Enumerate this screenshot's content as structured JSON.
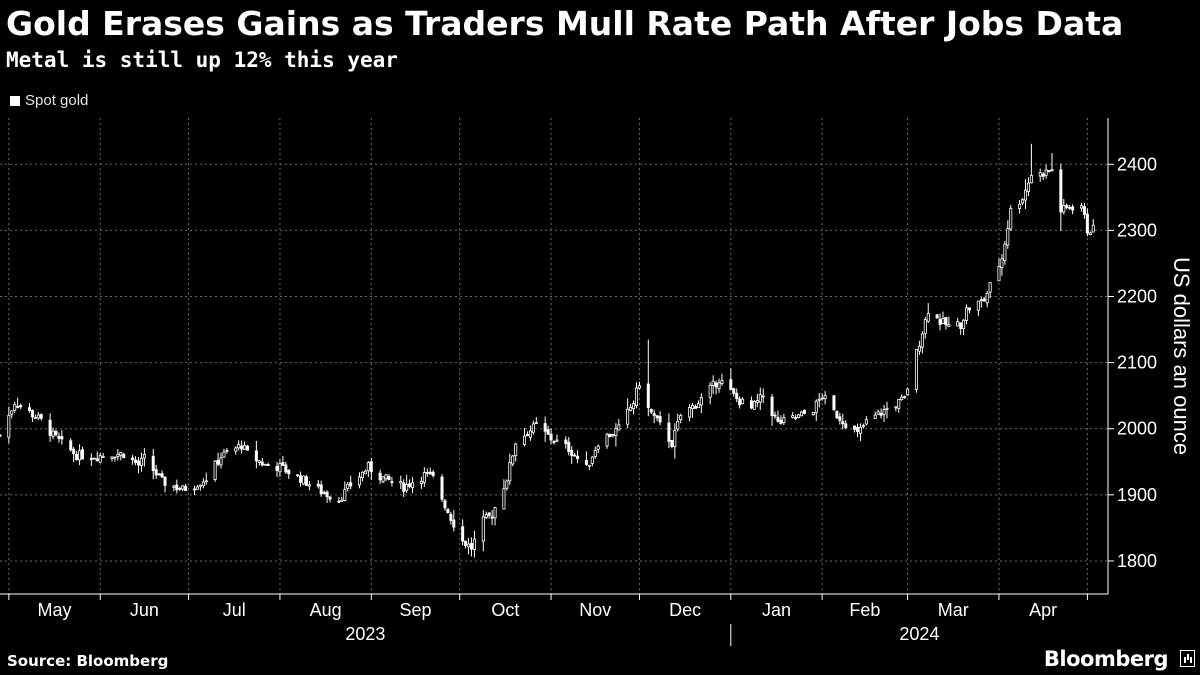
{
  "header": {
    "title": "Gold Erases Gains as Traders Mull Rate Path After Jobs Data",
    "subtitle": "Metal is still up 12% this year"
  },
  "footer": {
    "source": "Source: Bloomberg",
    "brand": "Bloomberg"
  },
  "colors": {
    "background": "#000000",
    "candle": "#ffffff",
    "grid": "#666666",
    "text": "#ffffff"
  },
  "chart_data": {
    "type": "candlestick",
    "title": "Gold Erases Gains as Traders Mull Rate Path After Jobs Data",
    "subtitle": "Metal is still up 12% this year",
    "legend": {
      "entries": [
        "Spot gold"
      ],
      "placement": "top-left"
    },
    "ylabel": "US dollars an ounce",
    "y_axis_side": "right",
    "ylim": [
      1750,
      2470
    ],
    "y_ticks": [
      1800,
      1900,
      2000,
      2100,
      2200,
      2300,
      2400
    ],
    "xlim": [
      "2023-04-28",
      "2024-05-08"
    ],
    "x_tick_boundaries": [
      "2023-05-01",
      "2023-06-01",
      "2023-07-01",
      "2023-08-01",
      "2023-09-01",
      "2023-10-01",
      "2023-11-01",
      "2023-12-01",
      "2024-01-01",
      "2024-02-01",
      "2024-03-01",
      "2024-04-01",
      "2024-05-01"
    ],
    "x_month_labels": [
      "May",
      "Jun",
      "Jul",
      "Aug",
      "Sep",
      "Oct",
      "Nov",
      "Dec",
      "Jan",
      "Feb",
      "Mar",
      "Apr"
    ],
    "x_year_labels": [
      "2023",
      "2024"
    ],
    "grid": true,
    "close_anchors": [
      [
        "2023-04-28",
        1990
      ],
      [
        "2023-05-03",
        2040
      ],
      [
        "2023-05-08",
        2025
      ],
      [
        "2023-05-12",
        2012
      ],
      [
        "2023-05-16",
        1990
      ],
      [
        "2023-05-19",
        1978
      ],
      [
        "2023-05-24",
        1960
      ],
      [
        "2023-05-30",
        1958
      ],
      [
        "2023-06-02",
        1960
      ],
      [
        "2023-06-05",
        1962
      ],
      [
        "2023-06-09",
        1962
      ],
      [
        "2023-06-14",
        1945
      ],
      [
        "2023-06-16",
        1955
      ],
      [
        "2023-06-22",
        1920
      ],
      [
        "2023-06-29",
        1908
      ],
      [
        "2023-07-03",
        1915
      ],
      [
        "2023-07-07",
        1925
      ],
      [
        "2023-07-12",
        1958
      ],
      [
        "2023-07-19",
        1975
      ],
      [
        "2023-07-21",
        1962
      ],
      [
        "2023-07-27",
        1945
      ],
      [
        "2023-08-01",
        1942
      ],
      [
        "2023-08-08",
        1925
      ],
      [
        "2023-08-15",
        1905
      ],
      [
        "2023-08-21",
        1893
      ],
      [
        "2023-08-25",
        1915
      ],
      [
        "2023-08-31",
        1942
      ],
      [
        "2023-09-05",
        1925
      ],
      [
        "2023-09-12",
        1912
      ],
      [
        "2023-09-19",
        1930
      ],
      [
        "2023-09-22",
        1925
      ],
      [
        "2023-09-27",
        1875
      ],
      [
        "2023-10-02",
        1830
      ],
      [
        "2023-10-05",
        1820
      ],
      [
        "2023-10-09",
        1860
      ],
      [
        "2023-10-12",
        1870
      ],
      [
        "2023-10-17",
        1925
      ],
      [
        "2023-10-20",
        1980
      ],
      [
        "2023-10-27",
        2005
      ],
      [
        "2023-11-01",
        1985
      ],
      [
        "2023-11-07",
        1970
      ],
      [
        "2023-11-13",
        1940
      ],
      [
        "2023-11-17",
        1980
      ],
      [
        "2023-11-24",
        2000
      ],
      [
        "2023-11-29",
        2040
      ],
      [
        "2023-12-01",
        2070
      ],
      [
        "2023-12-04",
        2030
      ],
      [
        "2023-12-08",
        2005
      ],
      [
        "2023-12-12",
        1978
      ],
      [
        "2023-12-15",
        2020
      ],
      [
        "2023-12-21",
        2040
      ],
      [
        "2023-12-28",
        2075
      ],
      [
        "2024-01-03",
        2045
      ],
      [
        "2024-01-08",
        2030
      ],
      [
        "2024-01-12",
        2050
      ],
      [
        "2024-01-17",
        2008
      ],
      [
        "2024-01-24",
        2018
      ],
      [
        "2024-01-29",
        2030
      ],
      [
        "2024-02-01",
        2050
      ],
      [
        "2024-02-05",
        2025
      ],
      [
        "2024-02-13",
        1992
      ],
      [
        "2024-02-16",
        2010
      ],
      [
        "2024-02-23",
        2030
      ],
      [
        "2024-02-29",
        2045
      ],
      [
        "2024-03-04",
        2115
      ],
      [
        "2024-03-08",
        2180
      ],
      [
        "2024-03-12",
        2162
      ],
      [
        "2024-03-15",
        2155
      ],
      [
        "2024-03-19",
        2158
      ],
      [
        "2024-03-21",
        2180
      ],
      [
        "2024-03-27",
        2195
      ],
      [
        "2024-04-02",
        2258
      ],
      [
        "2024-04-05",
        2330
      ],
      [
        "2024-04-09",
        2350
      ],
      [
        "2024-04-12",
        2385
      ],
      [
        "2024-04-15",
        2385
      ],
      [
        "2024-04-19",
        2392
      ],
      [
        "2024-04-22",
        2330
      ],
      [
        "2024-04-25",
        2335
      ],
      [
        "2024-04-29",
        2338
      ],
      [
        "2024-05-01",
        2300
      ],
      [
        "2024-05-03",
        2302
      ]
    ],
    "notable_highs": [
      [
        "2023-12-04",
        2135
      ],
      [
        "2024-04-12",
        2431
      ],
      [
        "2024-04-19",
        2417
      ]
    ]
  }
}
